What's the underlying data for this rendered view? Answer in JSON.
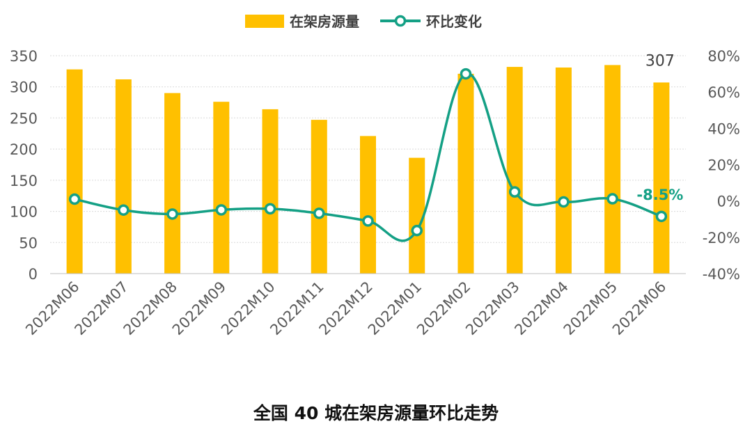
{
  "caption": "全国 40 城在架房源量环比走势",
  "colors": {
    "bar": "#FFC000",
    "line": "#14A085",
    "grid": "#D9D9D9",
    "axis_text": "#595959"
  },
  "chart_data": {
    "type": "bar",
    "categories": [
      "2022M06",
      "2022M07",
      "2022M08",
      "2022M09",
      "2022M10",
      "2022M11",
      "2022M12",
      "2022M01",
      "2022M02",
      "2022M03",
      "2022M04",
      "2022M05",
      "2022M06"
    ],
    "series": [
      {
        "name": "在架房源量",
        "type": "bar",
        "axis": "left",
        "values": [
          328,
          312,
          290,
          276,
          264,
          247,
          221,
          186,
          321,
          332,
          331,
          335,
          307
        ]
      },
      {
        "name": "环比变化",
        "type": "line",
        "axis": "right",
        "unit": "%",
        "values": [
          1.0,
          -5.0,
          -7.2,
          -4.9,
          -4.3,
          -6.8,
          -11.0,
          -16.3,
          70.0,
          5.0,
          -0.5,
          1.2,
          -8.5
        ]
      }
    ],
    "y_left": {
      "ylim": [
        0,
        350
      ],
      "ticks": [
        "0",
        "50",
        "100",
        "150",
        "200",
        "250",
        "300",
        "350"
      ]
    },
    "y_right": {
      "ylim": [
        -40,
        80
      ],
      "ticks": [
        "-40%",
        "-20%",
        "0%",
        "20%",
        "40%",
        "60%",
        "80%"
      ]
    },
    "data_labels": [
      {
        "series": "在架房源量",
        "index": 12,
        "text": "307"
      },
      {
        "series": "环比变化",
        "index": 12,
        "text": "-8.5%"
      }
    ],
    "legend": {
      "position": "top",
      "items": [
        "在架房源量",
        "环比变化"
      ]
    },
    "grid": true
  }
}
